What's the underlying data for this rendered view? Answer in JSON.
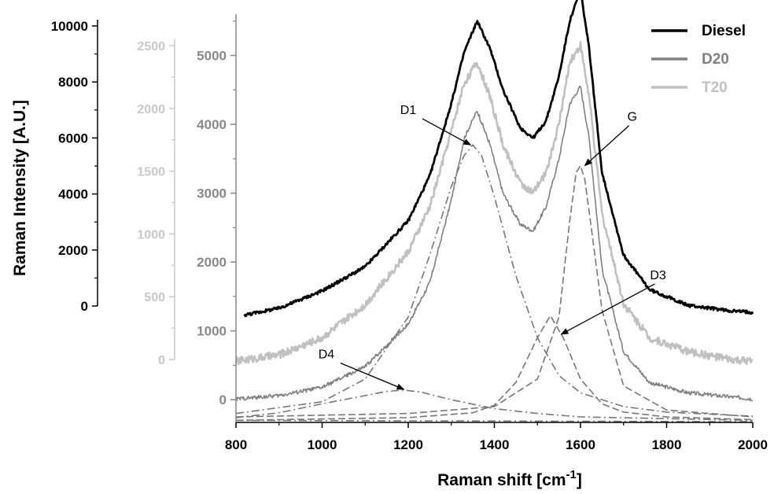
{
  "chart_data": {
    "type": "line",
    "title": "",
    "xlabel": "Raman shift [cm",
    "xlabel_sup": "-1",
    "xlabel_close": "]",
    "ylabel": "Raman Intensity [A.U.]",
    "x_axis": {
      "range": [
        800,
        2000
      ],
      "ticks": [
        800,
        1000,
        1200,
        1400,
        1600,
        1800,
        2000
      ],
      "tick_labels": [
        "800",
        "1000",
        "1200",
        "1400",
        "1600",
        "1800",
        "2000"
      ]
    },
    "y_axes": [
      {
        "name": "inner",
        "color": "#888888",
        "range": [
          -330,
          5600
        ],
        "ticks": [
          0,
          1000,
          2000,
          3000,
          4000,
          5000
        ],
        "tick_labels": [
          "0",
          "1000",
          "2000",
          "3000",
          "4000",
          "5000"
        ]
      },
      {
        "name": "middle",
        "color": "#c8c8c8",
        "range": [
          0,
          2500
        ],
        "ticks": [
          0,
          500,
          1000,
          1500,
          2000,
          2500
        ],
        "tick_labels": [
          "0",
          "500",
          "1000",
          "1500",
          "2000",
          "2500"
        ]
      },
      {
        "name": "outer",
        "color": "#000000",
        "range": [
          0,
          10000
        ],
        "ticks": [
          0,
          2000,
          4000,
          6000,
          8000,
          10000
        ],
        "tick_labels": [
          "0",
          "2000",
          "4000",
          "6000",
          "8000",
          "10000"
        ]
      }
    ],
    "legend": {
      "position": "top-right",
      "entries": [
        {
          "label": "Diesel",
          "color": "#000000"
        },
        {
          "label": "D20",
          "color": "#808080"
        },
        {
          "label": "T20",
          "color": "#c0c0c0"
        }
      ]
    },
    "series": [
      {
        "name": "Diesel",
        "color": "#000000",
        "x": [
          820,
          900,
          1000,
          1100,
          1200,
          1250,
          1300,
          1330,
          1360,
          1390,
          1420,
          1460,
          1490,
          1520,
          1550,
          1575,
          1600,
          1620,
          1650,
          1700,
          1760,
          1850,
          1950,
          2000
        ],
        "y": [
          1230,
          1330,
          1580,
          1930,
          2600,
          3250,
          4300,
          5050,
          5500,
          5100,
          4500,
          3950,
          3800,
          4050,
          4700,
          5500,
          5950,
          5100,
          3300,
          2100,
          1600,
          1370,
          1290,
          1270
        ]
      },
      {
        "name": "D20",
        "color": "#808080",
        "x": [
          800,
          900,
          1000,
          1100,
          1200,
          1250,
          1300,
          1330,
          1360,
          1390,
          1420,
          1460,
          1490,
          1520,
          1550,
          1575,
          1600,
          1620,
          1650,
          1700,
          1760,
          1850,
          1950,
          2000
        ],
        "y": [
          10,
          60,
          180,
          480,
          1100,
          1700,
          2900,
          3800,
          4200,
          3700,
          3000,
          2550,
          2450,
          2800,
          3500,
          4300,
          4550,
          3800,
          1900,
          700,
          250,
          100,
          40,
          10
        ]
      },
      {
        "name": "T20",
        "color": "#c0c0c0",
        "x": [
          800,
          900,
          1000,
          1100,
          1200,
          1250,
          1300,
          1330,
          1360,
          1390,
          1420,
          1460,
          1490,
          1520,
          1550,
          1575,
          1600,
          1620,
          1650,
          1700,
          1760,
          1850,
          1950,
          2000
        ],
        "y": [
          560,
          650,
          900,
          1380,
          2150,
          2800,
          3900,
          4600,
          4900,
          4400,
          3700,
          3150,
          3000,
          3300,
          4000,
          4900,
          5150,
          4400,
          2700,
          1400,
          900,
          700,
          580,
          550
        ]
      },
      {
        "name": "D1",
        "color": "#777777",
        "style": "dash-dot",
        "x": [
          800,
          1000,
          1100,
          1200,
          1250,
          1300,
          1330,
          1350,
          1370,
          1400,
          1450,
          1500,
          1550,
          1600,
          1700,
          1800,
          2000
        ],
        "y": [
          -200,
          -30,
          300,
          1200,
          2100,
          3100,
          3550,
          3700,
          3550,
          2950,
          1800,
          900,
          350,
          100,
          -100,
          -180,
          -240
        ]
      },
      {
        "name": "G",
        "color": "#777777",
        "style": "dash",
        "x": [
          800,
          1200,
          1400,
          1500,
          1550,
          1575,
          1590,
          1600,
          1610,
          1625,
          1650,
          1700,
          1800,
          2000
        ],
        "y": [
          -250,
          -200,
          -100,
          300,
          1200,
          2600,
          3300,
          3400,
          3200,
          2500,
          1300,
          200,
          -150,
          -250
        ]
      },
      {
        "name": "D3",
        "color": "#777777",
        "style": "dash",
        "x": [
          800,
          1200,
          1350,
          1400,
          1450,
          1500,
          1530,
          1560,
          1600,
          1650,
          1700,
          1800,
          2000
        ],
        "y": [
          -300,
          -260,
          -190,
          -80,
          250,
          900,
          1220,
          900,
          300,
          -60,
          -180,
          -250,
          -290
        ]
      },
      {
        "name": "D4",
        "color": "#777777",
        "style": "dash-dot",
        "x": [
          800,
          900,
          1000,
          1100,
          1150,
          1190,
          1230,
          1300,
          1400,
          1500,
          1600,
          2000
        ],
        "y": [
          -260,
          -190,
          -60,
          60,
          120,
          140,
          110,
          0,
          -130,
          -200,
          -250,
          -300
        ]
      },
      {
        "name": "baseline",
        "color": "#777777",
        "style": "dash-dot",
        "x": [
          800,
          2000
        ],
        "y": [
          -300,
          -320
        ]
      }
    ],
    "annotations": [
      {
        "label": "D1",
        "x": 1200,
        "y": 4150,
        "arrow_to": [
          1345,
          3700
        ]
      },
      {
        "label": "G",
        "x": 1720,
        "y": 4050,
        "arrow_to": [
          1610,
          3400
        ]
      },
      {
        "label": "D3",
        "x": 1780,
        "y": 1750,
        "arrow_to": [
          1555,
          950
        ]
      },
      {
        "label": "D4",
        "x": 1010,
        "y": 600,
        "arrow_to": [
          1190,
          150
        ]
      }
    ]
  }
}
